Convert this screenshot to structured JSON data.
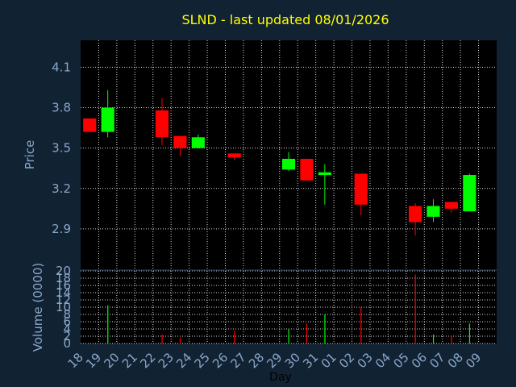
{
  "title": "SLND - last updated 08/01/2026",
  "colors": {
    "background": "#112233",
    "up": "#00ff00",
    "down": "#ff0000",
    "text": "#8aa8c8",
    "title": "#ffff00"
  },
  "chart_data": [
    {
      "type": "candlestick",
      "ylabel": "Price",
      "ylim": [
        2.6,
        4.3
      ],
      "yticks": [
        "2.9",
        "3.2",
        "3.5",
        "3.8",
        "4.1"
      ],
      "grid": true,
      "days": [
        "18",
        "19",
        "20",
        "21",
        "22",
        "23",
        "24",
        "25",
        "26",
        "27",
        "28",
        "29",
        "30",
        "31",
        "01",
        "02",
        "03",
        "04",
        "05",
        "06",
        "07",
        "08",
        "09"
      ],
      "candles": [
        {
          "day": "18",
          "open": 3.72,
          "close": 3.62,
          "high": 3.72,
          "low": 3.62
        },
        {
          "day": "19",
          "open": 3.62,
          "close": 3.8,
          "high": 3.93,
          "low": 3.58
        },
        {
          "day": "22",
          "open": 3.78,
          "close": 3.58,
          "high": 3.87,
          "low": 3.52
        },
        {
          "day": "23",
          "open": 3.59,
          "close": 3.5,
          "high": 3.59,
          "low": 3.44
        },
        {
          "day": "24",
          "open": 3.5,
          "close": 3.58,
          "high": 3.6,
          "low": 3.5
        },
        {
          "day": "26",
          "open": 3.46,
          "close": 3.43,
          "high": 3.46,
          "low": 3.41
        },
        {
          "day": "29",
          "open": 3.34,
          "close": 3.42,
          "high": 3.47,
          "low": 3.33
        },
        {
          "day": "30",
          "open": 3.42,
          "close": 3.26,
          "high": 3.42,
          "low": 3.26
        },
        {
          "day": "31",
          "open": 3.3,
          "close": 3.32,
          "high": 3.38,
          "low": 3.08
        },
        {
          "day": "02",
          "open": 3.31,
          "close": 3.08,
          "high": 3.31,
          "low": 3.0
        },
        {
          "day": "05",
          "open": 3.07,
          "close": 2.95,
          "high": 3.09,
          "low": 2.85
        },
        {
          "day": "06",
          "open": 2.99,
          "close": 3.07,
          "high": 3.12,
          "low": 2.95
        },
        {
          "day": "07",
          "open": 3.1,
          "close": 3.05,
          "high": 3.1,
          "low": 3.02
        },
        {
          "day": "08",
          "open": 3.03,
          "close": 3.3,
          "high": 3.31,
          "low": 3.03
        }
      ]
    },
    {
      "type": "bar",
      "ylabel": "Volume (0000)",
      "xlabel": "Day",
      "ylim": [
        0,
        20
      ],
      "yticks": [
        "0",
        "2",
        "4",
        "6",
        "8",
        "10",
        "12",
        "14",
        "16",
        "18",
        "20"
      ],
      "grid": true,
      "bars": [
        {
          "day": "19",
          "value": 10.5,
          "direction": "up"
        },
        {
          "day": "22",
          "value": 2.5,
          "direction": "down"
        },
        {
          "day": "23",
          "value": 1.5,
          "direction": "down"
        },
        {
          "day": "26",
          "value": 3.5,
          "direction": "down"
        },
        {
          "day": "29",
          "value": 4.0,
          "direction": "up"
        },
        {
          "day": "30",
          "value": 5.5,
          "direction": "down"
        },
        {
          "day": "31",
          "value": 8.0,
          "direction": "up"
        },
        {
          "day": "02",
          "value": 10.0,
          "direction": "down"
        },
        {
          "day": "05",
          "value": 19.0,
          "direction": "down"
        },
        {
          "day": "06",
          "value": 2.5,
          "direction": "up"
        },
        {
          "day": "07",
          "value": 2.0,
          "direction": "down"
        },
        {
          "day": "08",
          "value": 5.5,
          "direction": "up"
        }
      ]
    }
  ]
}
